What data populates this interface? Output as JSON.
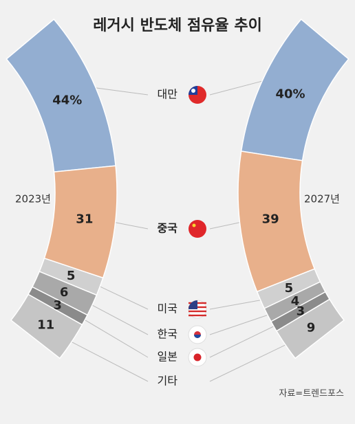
{
  "chart_data": {
    "type": "arc-stacked-bar",
    "title": "레거시 반도체 점유율 추이",
    "categories": [
      "대만",
      "중국",
      "미국",
      "한국",
      "일본",
      "기타"
    ],
    "colors": [
      "#93aed1",
      "#e8b08b",
      "#d0d0d0",
      "#a9a9a9",
      "#8b8b8b",
      "#c5c5c5"
    ],
    "series": [
      {
        "name": "2023년",
        "values": [
          44,
          31,
          5,
          6,
          3,
          11
        ],
        "value_labels": [
          "44%",
          "31",
          "5",
          "6",
          "3",
          "11"
        ]
      },
      {
        "name": "2027년",
        "values": [
          40,
          39,
          5,
          4,
          3,
          9
        ],
        "value_labels": [
          "40%",
          "39",
          "5",
          "4",
          "3",
          "9"
        ]
      }
    ],
    "source": "자료=트렌드포스"
  }
}
